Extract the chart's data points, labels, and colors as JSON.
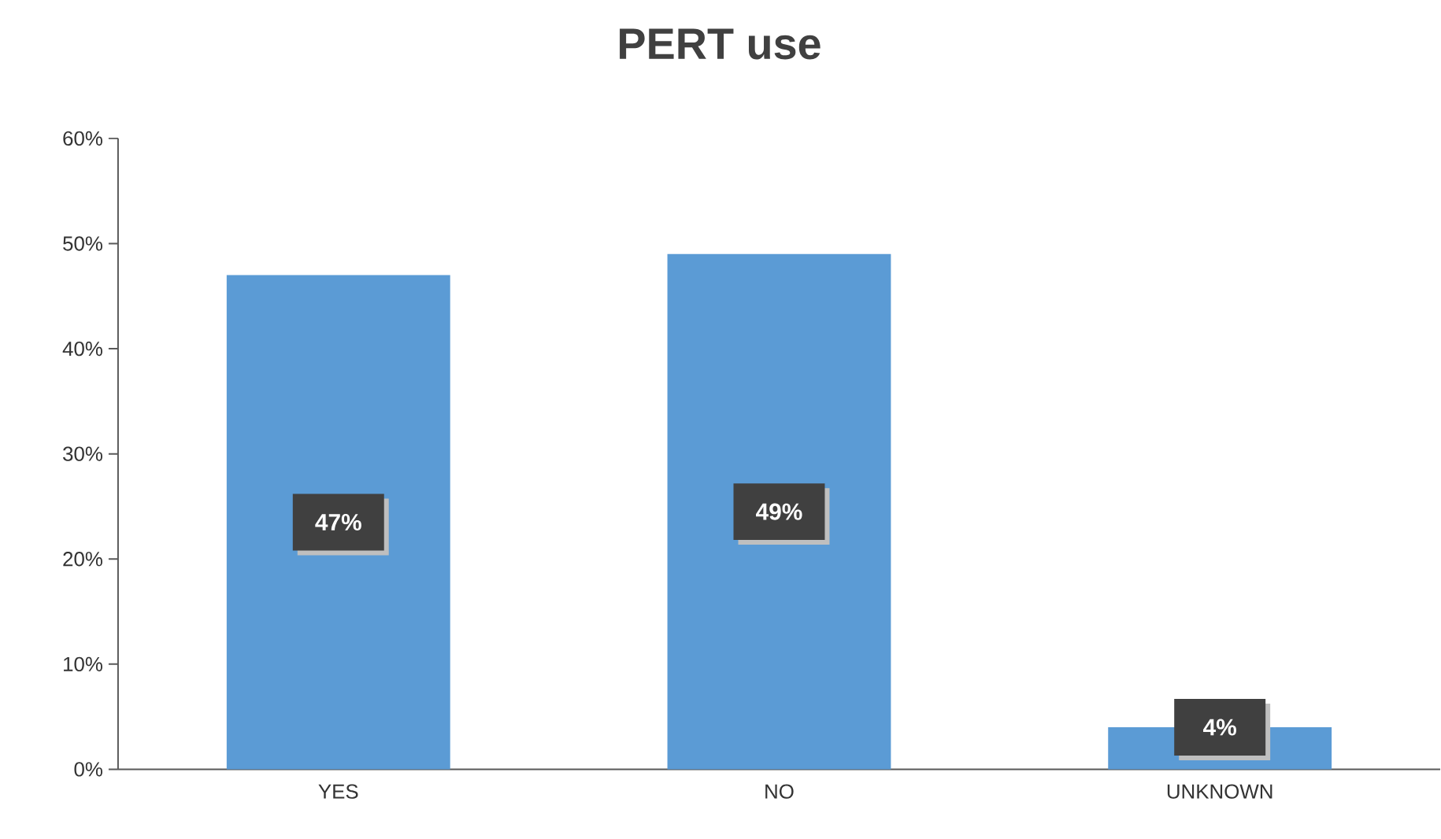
{
  "chart_data": {
    "type": "bar",
    "title": "PERT use",
    "categories": [
      "YES",
      "NO",
      "UNKNOWN"
    ],
    "values": [
      47,
      49,
      4
    ],
    "color": "#5b9bd5",
    "value_labels": [
      "47%",
      "49%",
      "4%"
    ],
    "ylim": [
      0,
      60
    ],
    "yticks": [
      {
        "value": 0,
        "label": "0%"
      },
      {
        "value": 10,
        "label": "10%"
      },
      {
        "value": 20,
        "label": "20%"
      },
      {
        "value": 30,
        "label": "30%"
      },
      {
        "value": 40,
        "label": "40%"
      },
      {
        "value": 50,
        "label": "50%"
      },
      {
        "value": 60,
        "label": "60%"
      }
    ],
    "grid": false
  }
}
